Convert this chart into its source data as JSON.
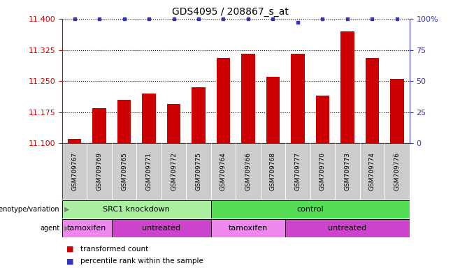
{
  "title": "GDS4095 / 208867_s_at",
  "samples": [
    "GSM709767",
    "GSM709769",
    "GSM709765",
    "GSM709771",
    "GSM709772",
    "GSM709775",
    "GSM709764",
    "GSM709766",
    "GSM709768",
    "GSM709777",
    "GSM709770",
    "GSM709773",
    "GSM709774",
    "GSM709776"
  ],
  "bar_values": [
    11.11,
    11.185,
    11.205,
    11.22,
    11.195,
    11.235,
    11.305,
    11.315,
    11.26,
    11.315,
    11.215,
    11.37,
    11.305,
    11.255
  ],
  "percentile_values": [
    100,
    100,
    100,
    100,
    100,
    100,
    100,
    100,
    100,
    97,
    100,
    100,
    100,
    100
  ],
  "bar_color": "#cc0000",
  "dot_color": "#3333bb",
  "ylim_left": [
    11.1,
    11.4
  ],
  "ylim_right": [
    0,
    100
  ],
  "yticks_left": [
    11.1,
    11.175,
    11.25,
    11.325,
    11.4
  ],
  "yticks_right": [
    0,
    25,
    50,
    75,
    100
  ],
  "genotype_groups": [
    {
      "label": "SRC1 knockdown",
      "start": 0,
      "end": 6,
      "color": "#aaeea0"
    },
    {
      "label": "control",
      "start": 6,
      "end": 14,
      "color": "#55dd55"
    }
  ],
  "agent_groups": [
    {
      "label": "tamoxifen",
      "start": 0,
      "end": 2,
      "color": "#ee88ee"
    },
    {
      "label": "untreated",
      "start": 2,
      "end": 6,
      "color": "#cc44cc"
    },
    {
      "label": "tamoxifen",
      "start": 6,
      "end": 9,
      "color": "#ee88ee"
    },
    {
      "label": "untreated",
      "start": 9,
      "end": 14,
      "color": "#cc44cc"
    }
  ],
  "bar_color_legend": "#cc0000",
  "dot_color_legend": "#3333bb",
  "legend_bar_label": "transformed count",
  "legend_dot_label": "percentile rank within the sample",
  "label_color": "#cc0000",
  "right_axis_color": "#3333bb",
  "sample_box_color": "#cccccc"
}
